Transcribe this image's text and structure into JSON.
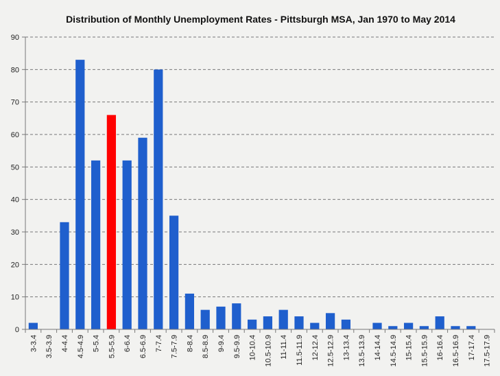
{
  "chart_data": {
    "type": "bar",
    "title": "Distribution of Monthly Unemployment Rates - Pittsburgh MSA, Jan 1970 to May 2014",
    "xlabel": "",
    "ylabel": "",
    "ylim": [
      0,
      90
    ],
    "yticks": [
      0,
      10,
      20,
      30,
      40,
      50,
      60,
      70,
      80,
      90
    ],
    "grid": true,
    "legend": "none",
    "categories": [
      "3-3.4",
      "3.5-3.9",
      "4-4.4",
      "4.5-4.9",
      "5-5.4",
      "5.5-5.9",
      "6-6.4",
      "6.5-6.9",
      "7-7.4",
      "7.5-7.9",
      "8-8.4",
      "8.5-8.9",
      "9-9.4",
      "9.5-9.9",
      "10-10.4",
      "10.5-10.9",
      "11-11.4",
      "11.5-11.9",
      "12-12.4",
      "12.5-12.9",
      "13-13.4",
      "13.5-13.9",
      "14-14.4",
      "14.5-14.9",
      "15-15.4",
      "15.5-15.9",
      "16-16.4",
      "16.5-16.9",
      "17-17.4",
      "17.5-17.9"
    ],
    "values": [
      2,
      0,
      33,
      83,
      52,
      66,
      52,
      59,
      80,
      35,
      11,
      6,
      7,
      8,
      3,
      4,
      6,
      4,
      2,
      5,
      3,
      0,
      2,
      1,
      2,
      1,
      4,
      1,
      1,
      0
    ],
    "highlight_index": 5,
    "colors": {
      "bar": "#1f5fcd",
      "highlight": "#ff0000",
      "grid": "#777777"
    }
  }
}
